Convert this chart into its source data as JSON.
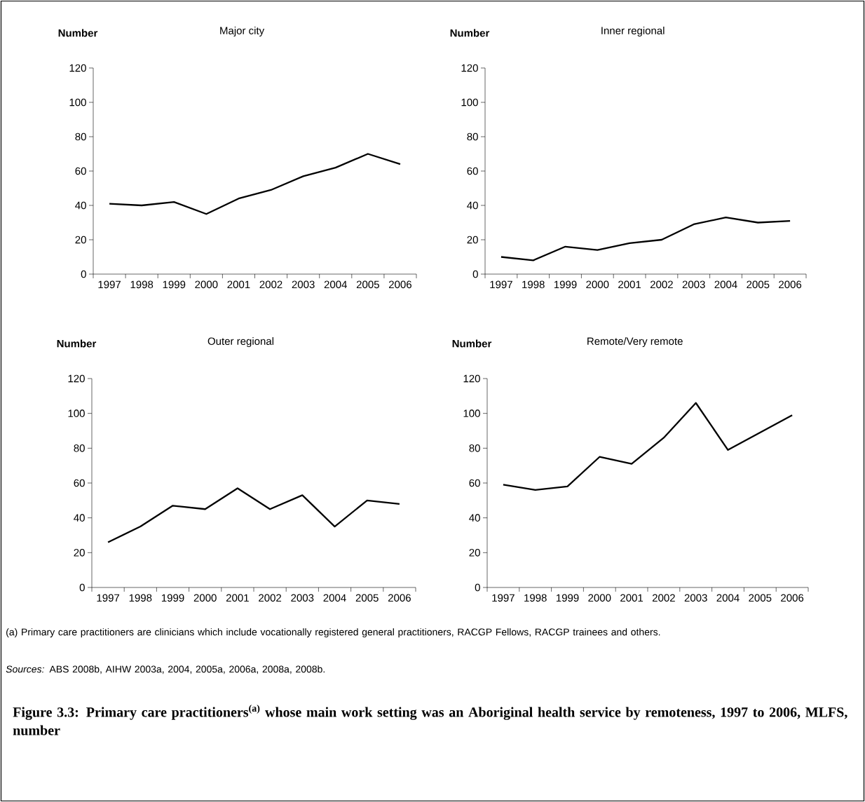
{
  "chart_data": [
    {
      "type": "line",
      "title": "Major city",
      "ylabel": "Number",
      "categories": [
        "1997",
        "1998",
        "1999",
        "2000",
        "2001",
        "2002",
        "2003",
        "2004",
        "2005",
        "2006"
      ],
      "color": "#000000",
      "ylim": [
        0,
        120
      ],
      "yticks": [
        0,
        20,
        40,
        60,
        80,
        100,
        120
      ],
      "values": [
        41,
        40,
        42,
        35,
        44,
        49,
        57,
        62,
        70,
        64
      ]
    },
    {
      "type": "line",
      "title": "Inner regional",
      "ylabel": "Number",
      "categories": [
        "1997",
        "1998",
        "1999",
        "2000",
        "2001",
        "2002",
        "2003",
        "2004",
        "2005",
        "2006"
      ],
      "color": "#000000",
      "ylim": [
        0,
        120
      ],
      "yticks": [
        0,
        20,
        40,
        60,
        80,
        100,
        120
      ],
      "values": [
        10,
        8,
        16,
        14,
        18,
        20,
        29,
        33,
        30,
        31
      ]
    },
    {
      "type": "line",
      "title": "Outer regional",
      "ylabel": "Number",
      "categories": [
        "1997",
        "1998",
        "1999",
        "2000",
        "2001",
        "2002",
        "2003",
        "2004",
        "2005",
        "2006"
      ],
      "color": "#000000",
      "ylim": [
        0,
        120
      ],
      "yticks": [
        0,
        20,
        40,
        60,
        80,
        100,
        120
      ],
      "values": [
        26,
        35,
        47,
        45,
        57,
        45,
        53,
        35,
        50,
        48
      ]
    },
    {
      "type": "line",
      "title": "Remote/Very remote",
      "ylabel": "Number",
      "categories": [
        "1997",
        "1998",
        "1999",
        "2000",
        "2001",
        "2002",
        "2003",
        "2004",
        "2005",
        "2006"
      ],
      "color": "#000000",
      "ylim": [
        0,
        120
      ],
      "yticks": [
        0,
        20,
        40,
        60,
        80,
        100,
        120
      ],
      "values": [
        59,
        56,
        58,
        75,
        71,
        86,
        106,
        79,
        89,
        99
      ],
      "annotations": [
        "(a) Primary care practitioners are clinicians which include vocationally registered general practitioners, RACGP Fellows, RACGP trainees and others.",
        "*Sources:* ABS 2008b, AIHW 2003a, 2004, 2005a, 2006a, 2008a, 2008b.",
        "Figure 3.3: Primary care practitioners$^{(a)}$ whose main work setting was an Aboriginal health service by remoteness, 1997 to 2006, MLFS, number"
      ]
    }
  ]
}
